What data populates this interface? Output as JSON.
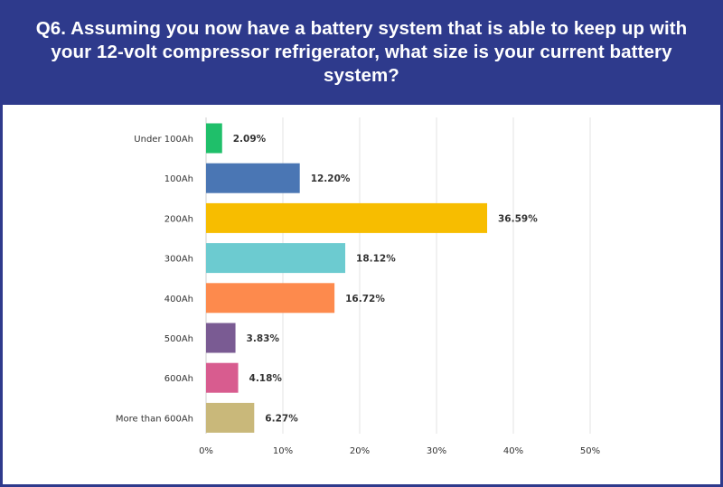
{
  "header": {
    "title": "Q6. Assuming you now have a battery system that is able to keep up with your 12-volt compressor refrigerator, what size is your current battery system?",
    "background": "#2e3a8c",
    "text_color": "#ffffff"
  },
  "chart_data": {
    "type": "bar",
    "orientation": "horizontal",
    "title": "",
    "xlabel": "",
    "ylabel": "",
    "categories": [
      "Under 100Ah",
      "100Ah",
      "200Ah",
      "300Ah",
      "400Ah",
      "500Ah",
      "600Ah",
      "More than 600Ah"
    ],
    "values": [
      2.09,
      12.2,
      36.59,
      18.12,
      16.72,
      3.83,
      4.18,
      6.27
    ],
    "value_labels": [
      "2.09%",
      "12.20%",
      "36.59%",
      "18.12%",
      "16.72%",
      "3.83%",
      "4.18%",
      "6.27%"
    ],
    "colors": [
      "#1fbf6a",
      "#4a76b4",
      "#f7bd00",
      "#6ccbd0",
      "#fd8a4d",
      "#7a5b93",
      "#d85c8f",
      "#c9b87a"
    ],
    "xlim": [
      0,
      50
    ],
    "x_ticks": [
      0,
      10,
      20,
      30,
      40,
      50
    ],
    "x_tick_labels": [
      "0%",
      "10%",
      "20%",
      "30%",
      "40%",
      "50%"
    ],
    "grid": true,
    "legend": "none"
  }
}
